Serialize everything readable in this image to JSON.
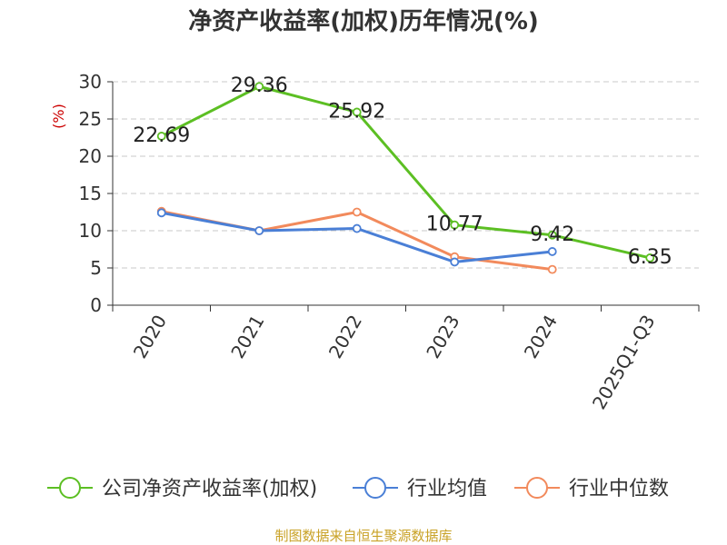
{
  "chart_data": {
    "type": "line",
    "title": "净资产收益率(加权)历年情况(%)",
    "ylabel": "(%)",
    "xlabel": "",
    "categories": [
      "2020",
      "2021",
      "2022",
      "2023",
      "2024",
      "2025Q1-Q3"
    ],
    "ylim": [
      0,
      30
    ],
    "yticks": [
      "0",
      "5",
      "10",
      "15",
      "20",
      "25",
      "30"
    ],
    "grid": true,
    "legend_position": "bottom",
    "series": [
      {
        "name": "公司净资产收益率(加权)",
        "color": "#5cbf23",
        "values": [
          22.69,
          29.36,
          25.92,
          10.77,
          9.42,
          6.35
        ],
        "labels": [
          "22.69",
          "29.36",
          "25.92",
          "10.77",
          "9.42",
          "6.35"
        ]
      },
      {
        "name": "行业均值",
        "color": "#4a7fd6",
        "values": [
          12.4,
          10.0,
          10.3,
          5.8,
          7.2,
          null
        ]
      },
      {
        "name": "行业中位数",
        "color": "#f28a5c",
        "values": [
          12.6,
          10.0,
          12.5,
          6.5,
          4.8,
          null
        ]
      }
    ]
  },
  "source": "制图数据来自恒生聚源数据库"
}
